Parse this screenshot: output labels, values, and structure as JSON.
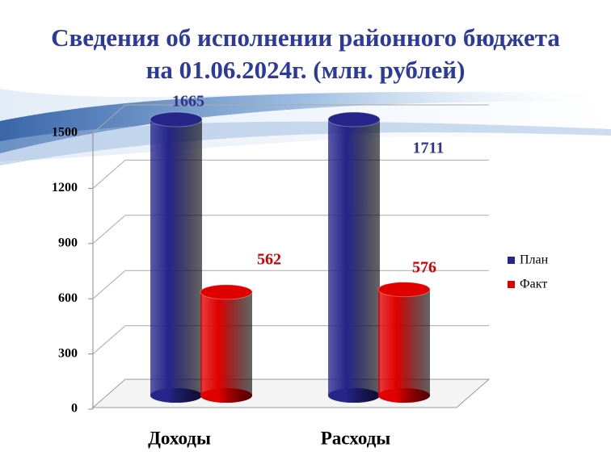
{
  "chart_data": {
    "type": "bar3d",
    "title": "Сведения об исполнении районного бюджета",
    "subtitle": "на 01.06.2024г. (млн. рублей)",
    "categories": [
      "Доходы",
      "Расходы"
    ],
    "series": [
      {
        "name": "План",
        "color": "#25258a",
        "values": [
          1665,
          1711
        ],
        "label_color": "#333388"
      },
      {
        "name": "Факт",
        "color": "#e00000",
        "values": [
          562,
          576
        ],
        "label_color": "#cc0000"
      }
    ],
    "ylim": [
      0,
      1500
    ],
    "yticks": [
      0,
      300,
      600,
      900,
      1200,
      1500
    ],
    "grid": true,
    "legend": "right"
  }
}
